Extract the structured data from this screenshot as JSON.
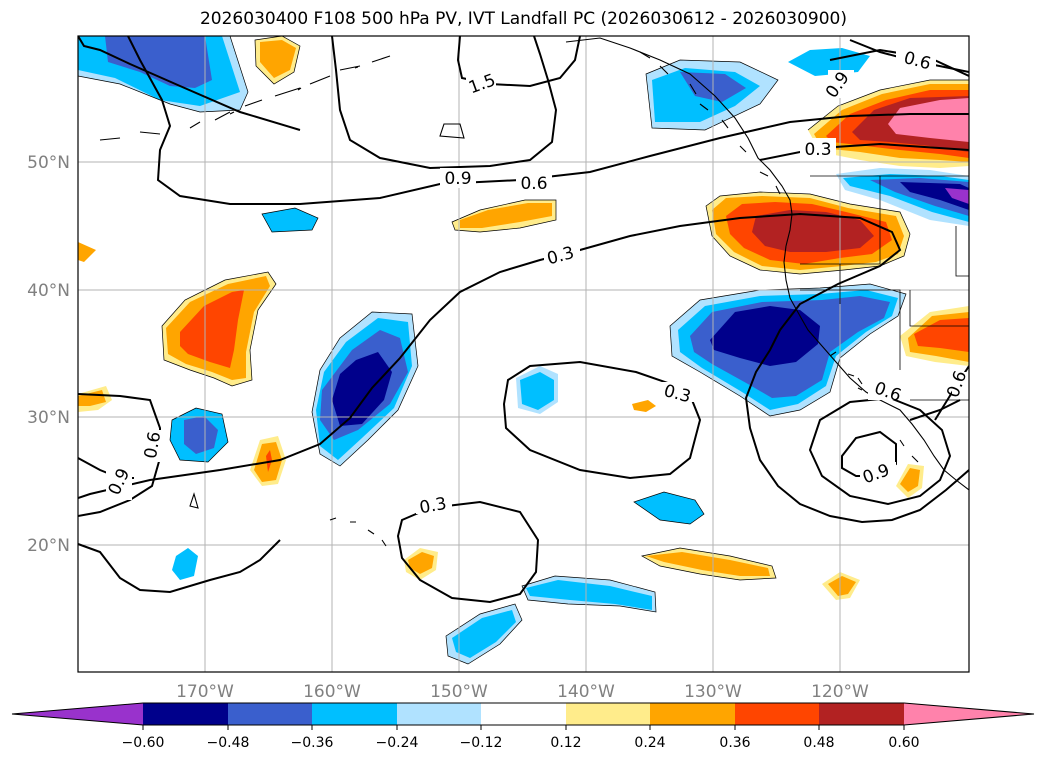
{
  "title": "2026030400 F108 500 hPa PV, IVT Landfall PC (2026030612 - 2026030900)",
  "map": {
    "lat_labels": [
      "50°N",
      "40°N",
      "30°N",
      "20°N"
    ],
    "lon_labels": [
      "170°W",
      "160°W",
      "150°W",
      "140°W",
      "130°W",
      "120°W"
    ],
    "contour_labels": [
      "1.5",
      "0.9",
      "0.6",
      "0.3",
      "0.3",
      "0.3",
      "0.6",
      "0.9",
      "0.6",
      "0.9",
      "0.3",
      "0.6",
      "0.9",
      "0.6"
    ]
  },
  "colorbar": {
    "ticks": [
      "−0.60",
      "−0.48",
      "−0.36",
      "−0.24",
      "−0.12",
      "0.12",
      "0.24",
      "0.36",
      "0.48",
      "0.60"
    ],
    "colors": {
      "lt_neg060": "#9932cc",
      "neg060_neg048": "#00008b",
      "neg048_neg036": "#3a5fcd",
      "neg036_neg024": "#00bfff",
      "neg024_neg012": "#b0e2ff",
      "neg012_012": "#ffffff",
      "p012_024": "#ffec8b",
      "p024_036": "#ffa500",
      "p036_048": "#ff4500",
      "p048_060": "#b22222",
      "gt_060": "#ff82ab"
    }
  }
}
